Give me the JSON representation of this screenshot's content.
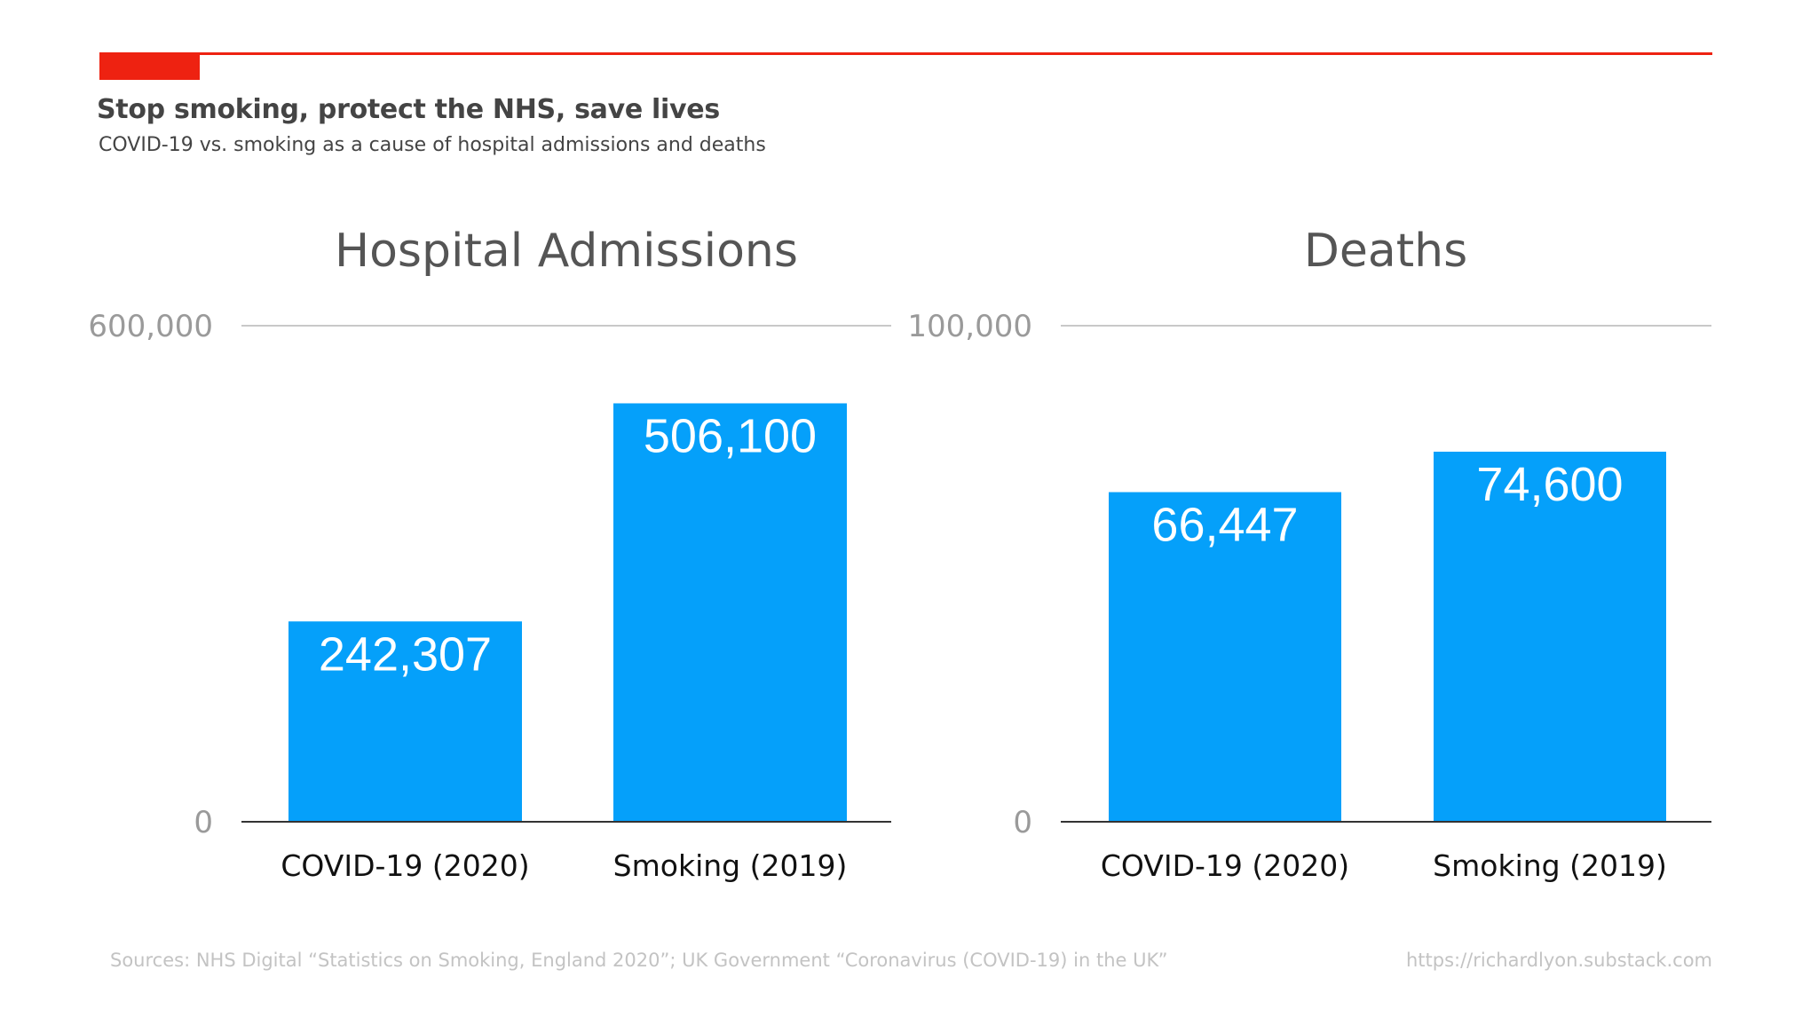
{
  "header": {
    "title": "Stop smoking, protect the NHS, save lives",
    "subtitle": "COVID-19 vs. smoking as a cause of hospital admissions and deaths"
  },
  "footer": {
    "sources": "Sources: NHS Digital “Statistics on Smoking, England 2020”; UK Government “Coronavirus (COVID-19) in the UK”",
    "url": "https://richardlyon.substack.com"
  },
  "colors": {
    "accent": "#ee2211",
    "bar": "#05a0fa",
    "baseline": "#333333",
    "gridline": "#c8c8c8"
  },
  "chart_data": [
    {
      "type": "bar",
      "title": "Hospital Admissions",
      "categories": [
        "COVID-19 (2020)",
        "Smoking (2019)"
      ],
      "values": [
        242307,
        506100
      ],
      "value_labels": [
        "242,307",
        "506,100"
      ],
      "ylim": [
        0,
        600000
      ],
      "yticks": [
        0,
        600000
      ],
      "ytick_labels": [
        "0",
        "600,000"
      ],
      "grid": true
    },
    {
      "type": "bar",
      "title": "Deaths",
      "categories": [
        "COVID-19 (2020)",
        "Smoking (2019)"
      ],
      "values": [
        66447,
        74600
      ],
      "value_labels": [
        "66,447",
        "74,600"
      ],
      "ylim": [
        0,
        100000
      ],
      "yticks": [
        0,
        100000
      ],
      "ytick_labels": [
        "0",
        "100,000"
      ],
      "grid": true
    }
  ]
}
